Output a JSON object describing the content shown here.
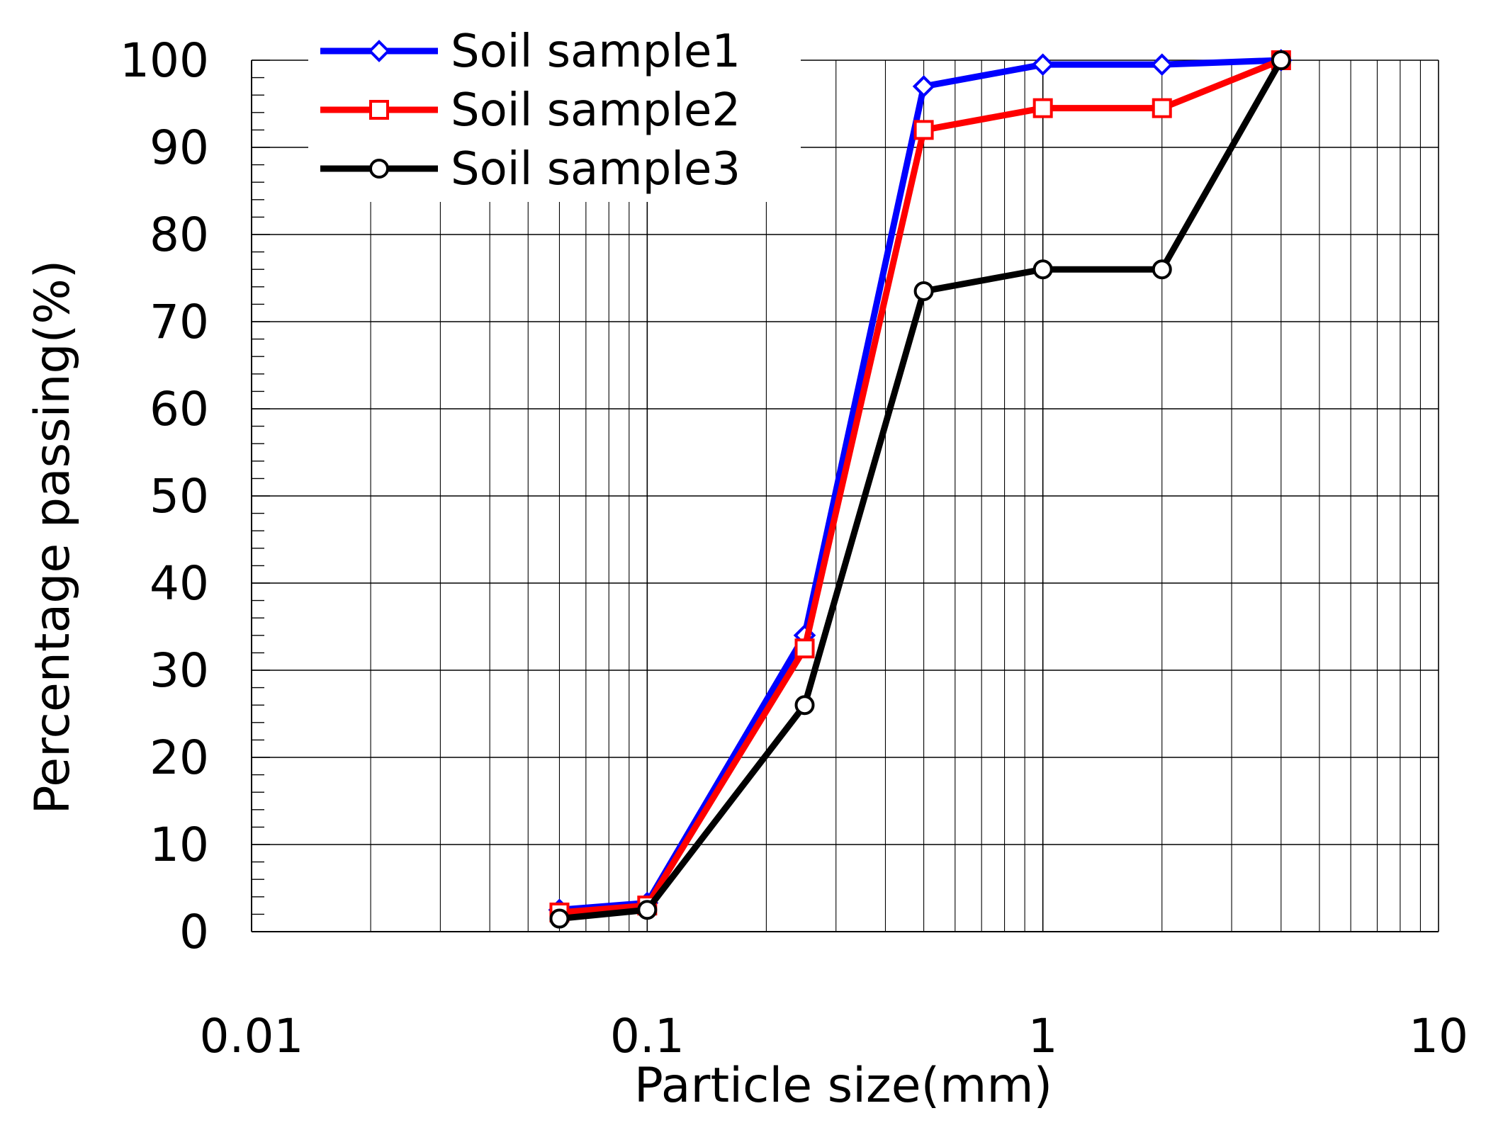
{
  "chart_data": {
    "type": "line",
    "title": "",
    "xlabel": "Particle size(mm)",
    "ylabel": "Percentage passing(%)",
    "xscale": "log",
    "xlim": [
      0.01,
      10
    ],
    "ylim": [
      0,
      100
    ],
    "x_ticks": [
      0.01,
      0.1,
      1,
      10
    ],
    "x_tick_labels": [
      "0.01",
      "0.1",
      "1",
      "10"
    ],
    "y_ticks": [
      0,
      10,
      20,
      30,
      40,
      50,
      60,
      70,
      80,
      90,
      100
    ],
    "y_tick_labels": [
      "0",
      "10",
      "20",
      "30",
      "40",
      "50",
      "60",
      "70",
      "80",
      "90",
      "100"
    ],
    "grid": true,
    "legend_position": "top-left",
    "series": [
      {
        "name": "Soil sample1",
        "color": "#0000ff",
        "marker": "diamond",
        "x": [
          0.06,
          0.1,
          0.25,
          0.5,
          1,
          2,
          4
        ],
        "y": [
          2.5,
          3.3,
          34.0,
          97.0,
          99.5,
          99.5,
          100
        ]
      },
      {
        "name": "Soil sample2",
        "color": "#ff0000",
        "marker": "square",
        "x": [
          0.06,
          0.1,
          0.25,
          0.5,
          1,
          2,
          4
        ],
        "y": [
          2.2,
          3.0,
          32.5,
          92.0,
          94.5,
          94.5,
          100
        ]
      },
      {
        "name": "Soil sample3",
        "color": "#000000",
        "marker": "circle",
        "x": [
          0.06,
          0.1,
          0.25,
          0.5,
          1,
          2,
          4
        ],
        "y": [
          1.5,
          2.5,
          26.0,
          73.5,
          76.0,
          76.0,
          100
        ]
      }
    ]
  }
}
